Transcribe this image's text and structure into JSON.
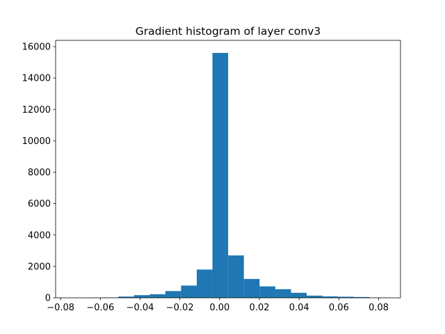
{
  "chart_data": {
    "type": "bar",
    "title": "Gradient histogram of layer conv3",
    "xlabel": "",
    "ylabel": "",
    "xlim": [
      -0.0825,
      0.091
    ],
    "ylim": [
      0,
      16400
    ],
    "grid": false,
    "color": "#1f77b4",
    "bin_edges": [
      -0.0747,
      -0.0668,
      -0.0589,
      -0.051,
      -0.0431,
      -0.0352,
      -0.0273,
      -0.0194,
      -0.0115,
      -0.0036,
      0.0043,
      0.0122,
      0.0201,
      0.028,
      0.0359,
      0.0438,
      0.0517,
      0.0596,
      0.0675,
      0.0754,
      0.0833
    ],
    "counts": [
      5,
      10,
      20,
      80,
      170,
      230,
      430,
      780,
      1800,
      15600,
      2700,
      1200,
      730,
      550,
      320,
      140,
      90,
      70,
      50,
      10
    ],
    "xticks": [
      -0.08,
      -0.06,
      -0.04,
      -0.02,
      0.0,
      0.02,
      0.04,
      0.06,
      0.08
    ],
    "xtick_labels": [
      "−0.08",
      "−0.06",
      "−0.04",
      "−0.02",
      "0.00",
      "0.02",
      "0.04",
      "0.06",
      "0.08"
    ],
    "yticks": [
      0,
      2000,
      4000,
      6000,
      8000,
      10000,
      12000,
      14000,
      16000
    ],
    "ytick_labels": [
      "0",
      "2000",
      "4000",
      "6000",
      "8000",
      "10000",
      "12000",
      "14000",
      "16000"
    ]
  }
}
